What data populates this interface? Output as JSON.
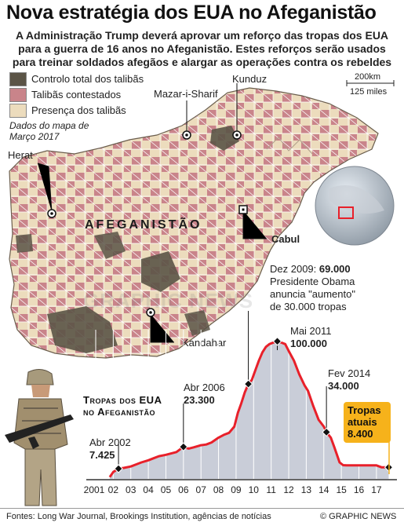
{
  "header": {
    "title": "Nova estratégia dos EUA no Afeganistão",
    "subtitle_lines": [
      "A Administração Trump deverá aprovar um reforço das tropas dos EUA",
      "para a guerra de 16 anos no Afeganistão. Estes reforços serão usados",
      "para treinar soldados afegãos e alargar as operações contra os rebeldes"
    ]
  },
  "legend": {
    "items": [
      {
        "label": "Controlo total dos talibãs",
        "color": "#5b5446"
      },
      {
        "label": "Talibãs contestados",
        "color": "#c9848a"
      },
      {
        "label": "Presença dos talibãs",
        "color": "#ecdcbd"
      }
    ],
    "note_line1": "Dados do mapa de",
    "note_line2": "Março 2017"
  },
  "scale": {
    "km": "200km",
    "miles": "125 miles"
  },
  "map": {
    "country_label": "AFEGANISTÃO",
    "cities": {
      "kunduz": "Kunduz",
      "mazar": "Mazar-i-Sharif",
      "herat": "Herat",
      "cabul": "Cabul",
      "kandahar": "Kandahar"
    }
  },
  "watermark": "GRAPHIC NEWS",
  "chart_title_line1": "Tropas dos EUA",
  "chart_title_line2": "no Afeganistão",
  "annotations": {
    "a2002": {
      "label": "Abr 2002",
      "value": "7.425"
    },
    "a2006": {
      "label": "Abr 2006",
      "value": "23.300"
    },
    "a2009": {
      "line1_prefix": "Dez 2009: ",
      "line1_value": "69.000",
      "line2": "Presidente Obama",
      "line3": "anuncia \"aumento\"",
      "line4": "de 30.000 tropas"
    },
    "a2011": {
      "label": "Mai 2011",
      "value": "100.000"
    },
    "a2014": {
      "label": "Fev 2014",
      "value": "34.000"
    },
    "current": {
      "line1": "Tropas",
      "line2": "atuais",
      "value": "8.400"
    }
  },
  "chart_data": {
    "type": "area",
    "title": "Tropas dos EUA no Afeganistão",
    "x_tick_labels": [
      "2001",
      "02",
      "03",
      "04",
      "05",
      "06",
      "07",
      "08",
      "09",
      "10",
      "11",
      "12",
      "13",
      "14",
      "15",
      "16",
      "17"
    ],
    "xlim": [
      2001,
      2017.9
    ],
    "ylim": [
      0,
      105000
    ],
    "colors": {
      "line": "#e8202a",
      "fill": "#b7bccb",
      "marker": "#111111",
      "current_box": "#f6b21b"
    },
    "x": [
      2001.8,
      2002.0,
      2002.3,
      2002.6,
      2003.0,
      2003.3,
      2003.6,
      2004.0,
      2004.3,
      2004.6,
      2005.0,
      2005.3,
      2005.6,
      2006.0,
      2006.3,
      2006.6,
      2007.0,
      2007.3,
      2007.6,
      2008.0,
      2008.3,
      2008.6,
      2008.9,
      2009.1,
      2009.3,
      2009.5,
      2009.7,
      2009.9,
      2010.1,
      2010.3,
      2010.5,
      2010.7,
      2010.9,
      2011.1,
      2011.35,
      2011.6,
      2011.8,
      2012.0,
      2012.3,
      2012.6,
      2012.9,
      2013.1,
      2013.4,
      2013.7,
      2014.0,
      2014.15,
      2014.4,
      2014.6,
      2014.9,
      2015.1,
      2015.3,
      2015.6,
      2016.0,
      2016.3,
      2016.6,
      2017.0,
      2017.3,
      2017.7
    ],
    "y": [
      1300,
      5000,
      7425,
      8000,
      9000,
      10500,
      12000,
      13500,
      15000,
      16500,
      17500,
      18500,
      19500,
      23300,
      22000,
      23000,
      24500,
      25000,
      26500,
      30000,
      32000,
      33500,
      38000,
      48000,
      55000,
      63000,
      69000,
      72000,
      79000,
      86000,
      92000,
      96000,
      98000,
      99000,
      100000,
      99000,
      98000,
      93000,
      86000,
      76000,
      68000,
      64000,
      53000,
      43000,
      38000,
      34000,
      30000,
      23000,
      12000,
      10000,
      9800,
      9800,
      9800,
      9800,
      9800,
      9800,
      8400,
      8400
    ],
    "highlight_points": [
      [
        2002.3,
        7425
      ],
      [
        2006.0,
        23300
      ],
      [
        2009.7,
        69000
      ],
      [
        2011.35,
        100000
      ],
      [
        2014.15,
        34000
      ],
      [
        2017.7,
        8400
      ]
    ]
  },
  "footer": {
    "sources": "Fontes: Long War Journal, Brookings Institution, agências de notícias",
    "credit": "© GRAPHIC NEWS"
  }
}
